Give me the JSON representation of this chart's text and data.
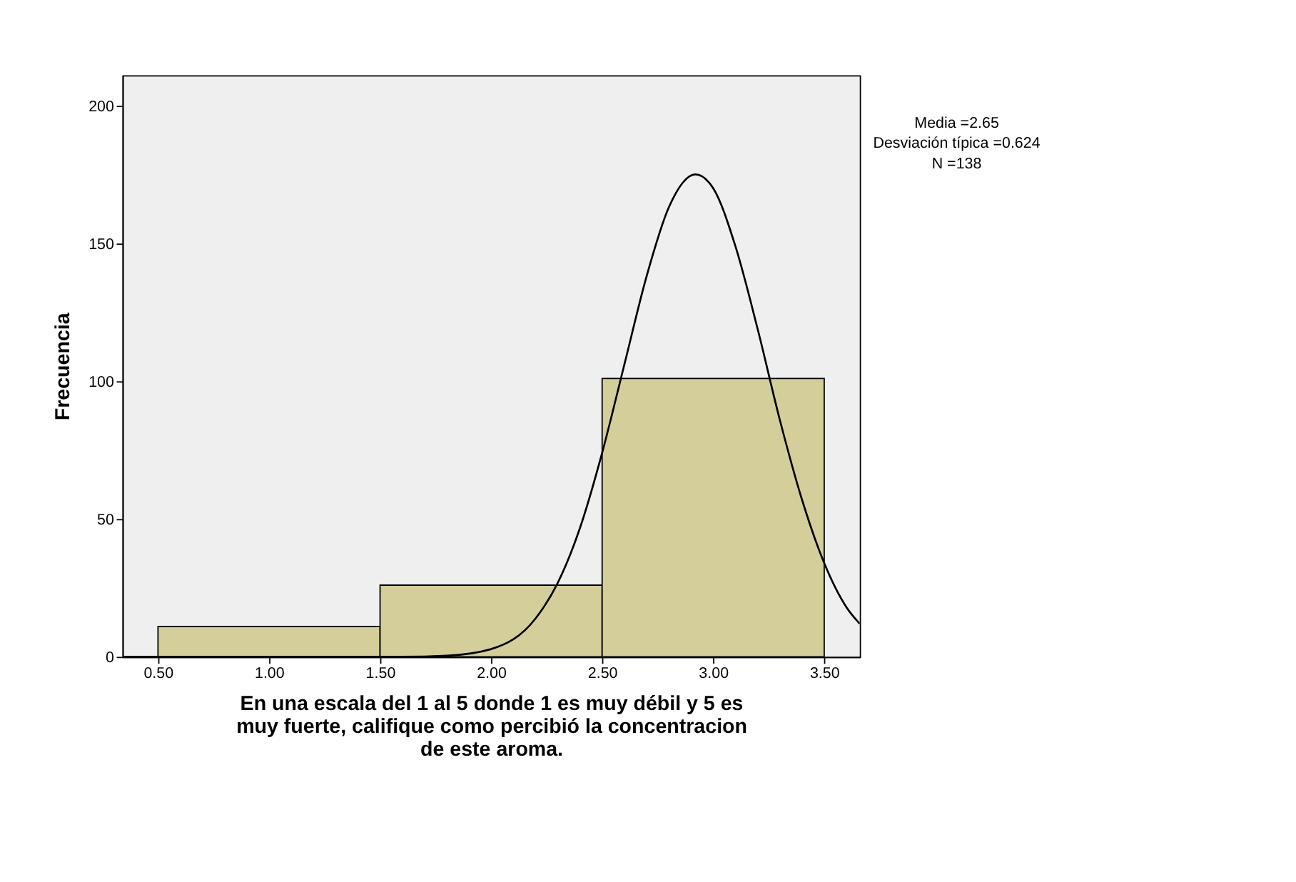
{
  "chart_data": {
    "type": "histogram",
    "xlabel": "En una escala del 1 al 5 donde 1 es muy débil y 5 es muy fuerte, califique como percibió la concentracion de este aroma.",
    "ylabel": "Frecuencia",
    "bins": [
      0.5,
      1.5,
      2.5,
      3.5
    ],
    "values": [
      11,
      26,
      101
    ],
    "color": "#d3ce9a",
    "series": [
      {
        "type": "line",
        "color": "#000000",
        "x": [
          0.34,
          1.4,
          1.6,
          1.8,
          2.0,
          2.2,
          2.3,
          2.4,
          2.5,
          2.6,
          2.7,
          2.8,
          2.92,
          3.0,
          3.1,
          3.2,
          3.3,
          3.4,
          3.5,
          3.6,
          3.66
        ],
        "values": [
          0,
          0,
          0,
          0.4,
          2.8,
          13.9,
          26.8,
          46.7,
          74,
          106,
          138,
          163,
          175,
          170,
          149,
          119,
          86,
          57,
          34,
          18,
          12
        ]
      }
    ],
    "xlim": [
      0.34,
      3.66
    ],
    "ylim": [
      0,
      211
    ],
    "xticks": [
      {
        "value": 0.5,
        "label": "0.50"
      },
      {
        "value": 1.0,
        "label": "1.00"
      },
      {
        "value": 1.5,
        "label": "1.50"
      },
      {
        "value": 2.0,
        "label": "2.00"
      },
      {
        "value": 2.5,
        "label": "2.50"
      },
      {
        "value": 3.0,
        "label": "3.00"
      },
      {
        "value": 3.5,
        "label": "3.50"
      }
    ],
    "yticks": [
      0,
      50,
      100,
      150,
      200
    ],
    "grid": false,
    "annotations": [
      "Media =2.65",
      "Desviación típica =0.624",
      "N =138"
    ]
  }
}
